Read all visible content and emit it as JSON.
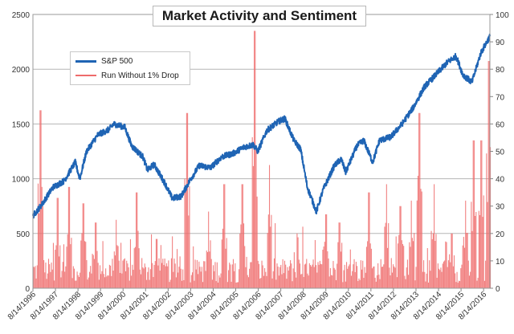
{
  "chart_data": {
    "type": "line",
    "title": "Market Activity and Sentiment",
    "xlabel": "",
    "ylabel_left": "",
    "ylabel_right": "",
    "grid": true,
    "legend_placement": "top-left",
    "categories": [
      "8/14/1996",
      "8/14/1997",
      "8/14/1998",
      "8/14/1999",
      "8/14/2000",
      "8/14/2001",
      "8/14/2002",
      "8/14/2003",
      "8/14/2004",
      "8/14/2005",
      "8/14/2006",
      "8/14/2007",
      "8/14/2008",
      "8/14/2009",
      "8/14/2010",
      "8/14/2011",
      "8/14/2012",
      "8/14/2013",
      "8/14/2014",
      "8/14/2015",
      "8/14/2016"
    ],
    "y_left": {
      "min": 0,
      "max": 2500,
      "ticks": [
        0,
        500,
        1000,
        1500,
        2000,
        2500
      ]
    },
    "y_right": {
      "min": 0,
      "max": 100,
      "ticks": [
        0,
        10,
        20,
        30,
        40,
        50,
        60,
        70,
        80,
        90,
        100
      ]
    },
    "x_range": [
      1996.62,
      2016.9
    ],
    "series": [
      {
        "name": "S&P 500",
        "axis": "left",
        "color": "#1f64b4",
        "x": [
          1996.62,
          1997.0,
          1997.5,
          1998.0,
          1998.5,
          1998.7,
          1999.0,
          1999.5,
          2000.0,
          2000.2,
          2000.7,
          2001.0,
          2001.5,
          2001.7,
          2002.0,
          2002.5,
          2002.8,
          2003.2,
          2003.6,
          2004.0,
          2004.5,
          2005.0,
          2005.5,
          2006.0,
          2006.4,
          2006.6,
          2007.0,
          2007.5,
          2007.8,
          2008.2,
          2008.5,
          2008.8,
          2009.2,
          2009.5,
          2010.0,
          2010.3,
          2010.5,
          2011.0,
          2011.3,
          2011.7,
          2012.0,
          2012.5,
          2013.0,
          2013.5,
          2014.0,
          2014.5,
          2015.0,
          2015.4,
          2015.7,
          2016.1,
          2016.5,
          2016.9
        ],
        "values": [
          660,
          760,
          920,
          980,
          1150,
          1000,
          1250,
          1400,
          1450,
          1500,
          1470,
          1300,
          1200,
          1080,
          1130,
          950,
          820,
          840,
          990,
          1120,
          1100,
          1200,
          1230,
          1290,
          1310,
          1250,
          1440,
          1520,
          1550,
          1350,
          1270,
          920,
          700,
          900,
          1120,
          1180,
          1060,
          1300,
          1350,
          1150,
          1350,
          1380,
          1500,
          1650,
          1840,
          1950,
          2060,
          2120,
          1950,
          1880,
          2150,
          2300
        ]
      },
      {
        "name": "Run Without 1% Drop",
        "axis": "right",
        "color": "#ee6b6b",
        "peaks": [
          {
            "x": 1996.95,
            "value": 65
          },
          {
            "x": 1997.7,
            "value": 33
          },
          {
            "x": 1998.2,
            "value": 37
          },
          {
            "x": 1998.85,
            "value": 31
          },
          {
            "x": 1999.4,
            "value": 24
          },
          {
            "x": 2000.3,
            "value": 25
          },
          {
            "x": 2001.2,
            "value": 35
          },
          {
            "x": 2002.1,
            "value": 18
          },
          {
            "x": 2003.45,
            "value": 64
          },
          {
            "x": 2004.4,
            "value": 28
          },
          {
            "x": 2005.1,
            "value": 38
          },
          {
            "x": 2005.9,
            "value": 38
          },
          {
            "x": 2006.45,
            "value": 94
          },
          {
            "x": 2007.1,
            "value": 45
          },
          {
            "x": 2009.6,
            "value": 27
          },
          {
            "x": 2010.2,
            "value": 24
          },
          {
            "x": 2011.5,
            "value": 35
          },
          {
            "x": 2012.3,
            "value": 38
          },
          {
            "x": 2012.9,
            "value": 30
          },
          {
            "x": 2013.4,
            "value": 32
          },
          {
            "x": 2013.75,
            "value": 64
          },
          {
            "x": 2014.4,
            "value": 38
          },
          {
            "x": 2015.2,
            "value": 20
          },
          {
            "x": 2015.8,
            "value": 32
          },
          {
            "x": 2016.15,
            "value": 54
          },
          {
            "x": 2016.5,
            "value": 54
          },
          {
            "x": 2016.85,
            "value": 83
          }
        ]
      }
    ]
  }
}
